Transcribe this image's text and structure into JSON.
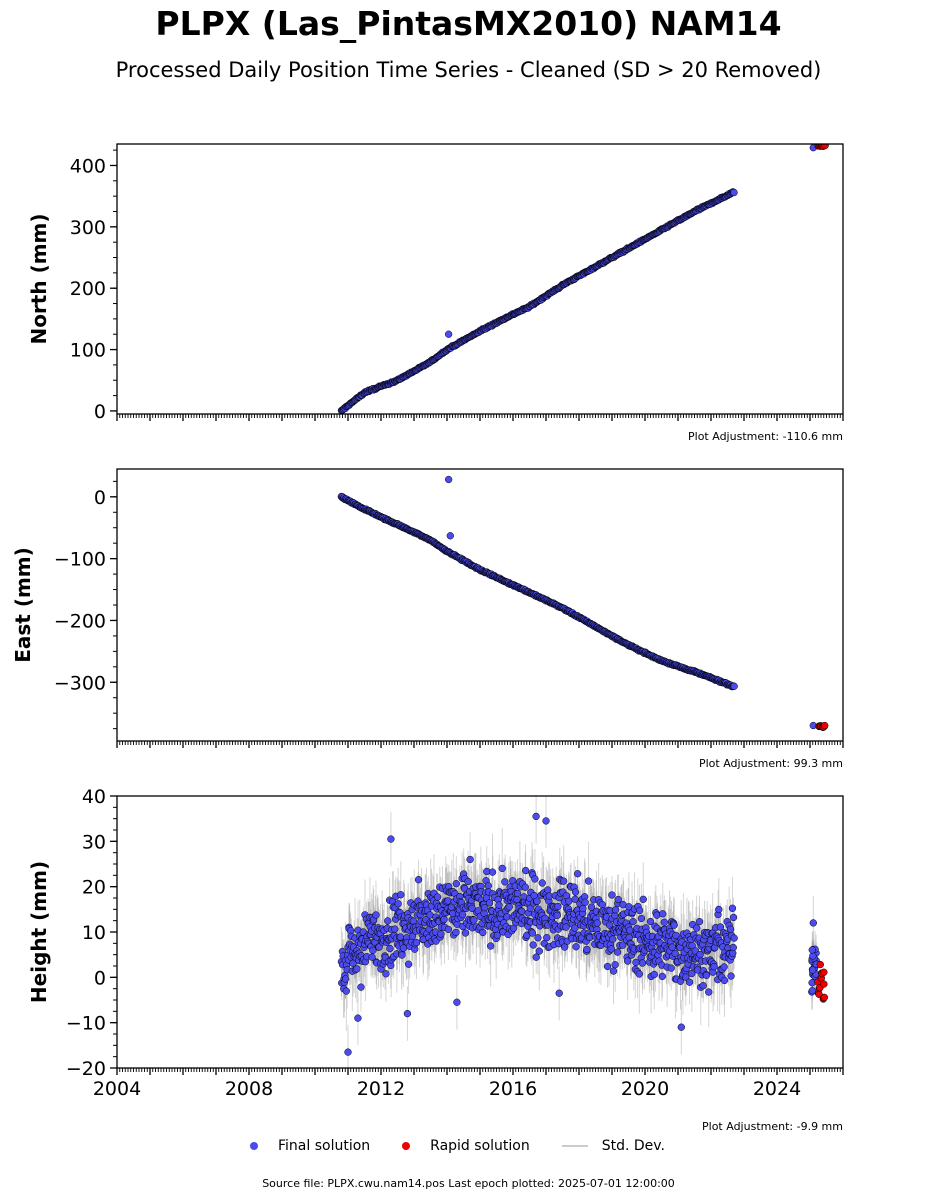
{
  "title": "PLPX (Las_PintasMX2010) NAM14",
  "subtitle": "Processed Daily Position Time Series - Cleaned (SD > 20 Removed)",
  "footer": "Source file: PLPX.cwu.nam14.pos  Last epoch plotted: 2025-07-01 12:00:00",
  "colors": {
    "final": "#4b4bf0",
    "rapid": "#ee0000",
    "stddev": "#888888",
    "edge": "#000000"
  },
  "legend": {
    "final": "Final solution",
    "rapid": "Rapid solution",
    "stddev": "Std. Dev."
  },
  "chart_data": [
    {
      "type": "scatter",
      "ylabel": "North (mm)",
      "adjustment": "Plot Adjustment: -110.6 mm",
      "xlim": [
        2004.0,
        2026.0
      ],
      "ylim": [
        -5,
        435
      ],
      "yticks": [
        0,
        100,
        200,
        300,
        400
      ],
      "ytick_labels": [
        "0",
        "100",
        "200",
        "300",
        "400"
      ],
      "show_x_tick_labels": false,
      "final": {
        "x": [
          2010.8,
          2011.5,
          2012.5,
          2013.5,
          2014.0,
          2015.0,
          2015.9,
          2016.5,
          2017.5,
          2018.5,
          2019.5,
          2020.5,
          2021.5,
          2022.7
        ],
        "y": [
          0,
          30,
          50,
          80,
          100,
          130,
          155,
          170,
          205,
          235,
          265,
          295,
          325,
          357
        ],
        "spread": 2
      },
      "final_outliers": {
        "x": [
          2014.05,
          2025.1
        ],
        "y": [
          125,
          429
        ]
      },
      "rapid": {
        "x": [
          2025.25,
          2025.45
        ],
        "y": [
          431,
          434
        ],
        "n": 14
      },
      "stddev_half": 4
    },
    {
      "type": "scatter",
      "ylabel": "East (mm)",
      "adjustment": "Plot Adjustment: 99.3 mm",
      "xlim": [
        2004.0,
        2026.0
      ],
      "ylim": [
        -395,
        45
      ],
      "yticks": [
        0,
        -100,
        -200,
        -300
      ],
      "ytick_labels": [
        "0",
        "−100",
        "−200",
        "−300"
      ],
      "show_x_tick_labels": false,
      "final": {
        "x": [
          2010.8,
          2011.5,
          2012.5,
          2013.5,
          2014.0,
          2015.0,
          2015.9,
          2016.5,
          2017.5,
          2018.5,
          2019.5,
          2020.5,
          2021.5,
          2022.7
        ],
        "y": [
          0,
          -20,
          -45,
          -70,
          -88,
          -118,
          -140,
          -155,
          -180,
          -210,
          -240,
          -265,
          -283,
          -307
        ],
        "spread": 2
      },
      "final_outliers": {
        "x": [
          2014.05,
          2014.1,
          2025.1
        ],
        "y": [
          28,
          -63,
          -370
        ]
      },
      "rapid": {
        "x": [
          2025.25,
          2025.45
        ],
        "y": [
          -370,
          -373
        ],
        "n": 14
      },
      "stddev_half": 4
    },
    {
      "type": "scatter",
      "ylabel": "Height (mm)",
      "adjustment": "Plot Adjustment: -9.9 mm",
      "xlim": [
        2004.0,
        2026.0
      ],
      "ylim": [
        -20,
        40
      ],
      "yticks": [
        -20,
        -10,
        0,
        10,
        20,
        30,
        40
      ],
      "ytick_labels": [
        "−20",
        "−10",
        "0",
        "10",
        "20",
        "30",
        "40"
      ],
      "show_x_tick_labels": true,
      "xticks": [
        2004,
        2008,
        2012,
        2016,
        2020,
        2024
      ],
      "xtick_labels": [
        "2004",
        "2008",
        "2012",
        "2016",
        "2020",
        "2024"
      ],
      "final": {
        "x": [
          2010.8,
          2011.5,
          2012.5,
          2013.5,
          2014.0,
          2014.5,
          2015.5,
          2016.0,
          2017.0,
          2018.0,
          2019.0,
          2020.0,
          2021.0,
          2022.0,
          2022.7
        ],
        "y": [
          2,
          7,
          11,
          13,
          15,
          15,
          15,
          15,
          14,
          13,
          11,
          8,
          6,
          5,
          7
        ],
        "spread": 11
      },
      "final_outliers": {
        "x": [
          2011.0,
          2011.3,
          2012.8,
          2014.3,
          2016.7,
          2017.0,
          2021.1,
          2012.3,
          2014.7,
          2017.4,
          2025.1
        ],
        "y": [
          -16.5,
          -9,
          -8,
          -5.5,
          35.5,
          34.5,
          -11,
          30.5,
          26,
          -3.5,
          12
        ]
      },
      "cluster_2025": {
        "x": [
          2025.05,
          2025.2
        ],
        "y": [
          -4,
          7
        ]
      },
      "rapid": {
        "x": [
          2025.25,
          2025.45
        ],
        "y": [
          -5,
          4
        ],
        "n": 14
      },
      "stddev_half": 6
    }
  ]
}
